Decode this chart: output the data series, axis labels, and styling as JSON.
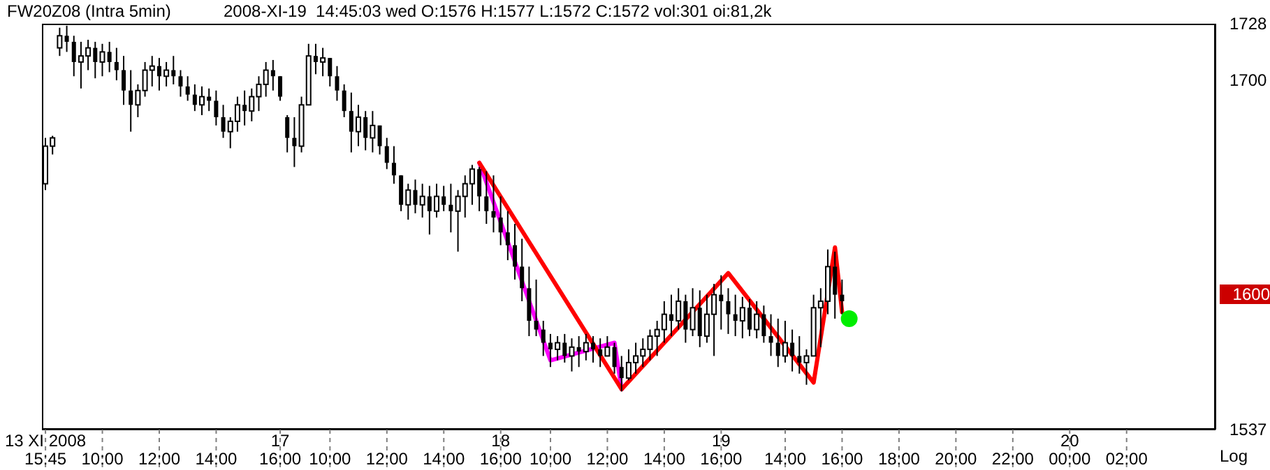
{
  "chart_data": {
    "type": "candlestick",
    "title": "FW20Z08 (Intra 5min)",
    "subtitle": "2008-XI-19  14:45:03 wed O:1576 H:1577 L:1572 C:1572 vol:301 oi:81,2k",
    "color": "#000000",
    "log": true,
    "ylim": [
      1537,
      1728
    ],
    "yticks": [
      1537,
      1700,
      1728
    ],
    "annotations": [
      "Log",
      "1600"
    ],
    "categories": [
      "13 XI 2008\n15:45",
      null,
      null,
      null,
      null,
      null,
      null,
      null,
      "10:00",
      null,
      null,
      null,
      null,
      null,
      null,
      null,
      "12:00",
      null,
      null,
      null,
      null,
      null,
      null,
      null,
      "14:00",
      null,
      null,
      null,
      null,
      null,
      null,
      null,
      null,
      "17\n16:00",
      null,
      null,
      null,
      null,
      null,
      null,
      "10:00",
      null,
      null,
      null,
      null,
      null,
      null,
      null,
      "12:00",
      null,
      null,
      null,
      null,
      null,
      null,
      null,
      "14:00",
      null,
      null,
      null,
      null,
      null,
      null,
      null,
      "18\n16:00",
      null,
      null,
      null,
      null,
      null,
      null,
      "10:00",
      null,
      null,
      null,
      null,
      null,
      null,
      null,
      "12:00",
      null,
      null,
      null,
      null,
      null,
      null,
      null,
      "14:00",
      null,
      null,
      null,
      null,
      null,
      null,
      null,
      "19\n16:00",
      null,
      null,
      null,
      null,
      null,
      null,
      null,
      null,
      "14:00",
      null,
      null,
      null,
      null,
      null,
      null,
      null,
      "16:00",
      null,
      null,
      null,
      null,
      null,
      null,
      null,
      "18:00",
      null,
      null,
      null,
      null,
      null,
      null,
      null,
      "20:00",
      null,
      null,
      null,
      null,
      null,
      null,
      null,
      "22:00",
      null,
      null,
      null,
      null,
      null,
      null,
      null,
      "20\n00:00",
      null,
      null,
      null,
      null,
      null,
      null,
      null,
      "02:00",
      null,
      null,
      null,
      null,
      null,
      null,
      null,
      null,
      null,
      null,
      null,
      null
    ],
    "ohlc": [
      [
        1650,
        1672,
        1647,
        1668
      ],
      [
        1668,
        1673,
        1664,
        1672
      ],
      [
        1716,
        1726,
        1712,
        1722
      ],
      [
        1722,
        1727,
        1714,
        1719
      ],
      [
        1719,
        1722,
        1702,
        1709
      ],
      [
        1709,
        1719,
        1696,
        1712
      ],
      [
        1712,
        1720,
        1705,
        1716
      ],
      [
        1716,
        1719,
        1701,
        1709
      ],
      [
        1709,
        1718,
        1702,
        1714
      ],
      [
        1714,
        1719,
        1704,
        1709
      ],
      [
        1709,
        1716,
        1700,
        1705
      ],
      [
        1705,
        1712,
        1688,
        1695
      ],
      [
        1695,
        1705,
        1675,
        1688
      ],
      [
        1688,
        1698,
        1682,
        1695
      ],
      [
        1695,
        1709,
        1692,
        1705
      ],
      [
        1705,
        1712,
        1697,
        1707
      ],
      [
        1707,
        1711,
        1695,
        1702
      ],
      [
        1702,
        1709,
        1697,
        1705
      ],
      [
        1705,
        1712,
        1698,
        1702
      ],
      [
        1702,
        1705,
        1692,
        1697
      ],
      [
        1697,
        1702,
        1690,
        1693
      ],
      [
        1693,
        1698,
        1685,
        1688
      ],
      [
        1688,
        1697,
        1683,
        1692
      ],
      [
        1692,
        1696,
        1685,
        1690
      ],
      [
        1690,
        1695,
        1678,
        1682
      ],
      [
        1682,
        1688,
        1672,
        1675
      ],
      [
        1675,
        1682,
        1667,
        1680
      ],
      [
        1680,
        1692,
        1675,
        1688
      ],
      [
        1688,
        1695,
        1678,
        1685
      ],
      [
        1685,
        1696,
        1680,
        1692
      ],
      [
        1692,
        1702,
        1685,
        1698
      ],
      [
        1698,
        1709,
        1692,
        1705
      ],
      [
        1705,
        1710,
        1695,
        1702
      ],
      [
        1702,
        1702,
        1690,
        1692
      ],
      [
        1682,
        1683,
        1665,
        1672
      ],
      [
        1672,
        1682,
        1658,
        1668
      ],
      [
        1668,
        1692,
        1665,
        1688
      ],
      [
        1688,
        1718,
        1688,
        1712
      ],
      [
        1712,
        1718,
        1703,
        1709
      ],
      [
        1709,
        1716,
        1702,
        1711
      ],
      [
        1711,
        1711,
        1697,
        1702
      ],
      [
        1702,
        1707,
        1690,
        1695
      ],
      [
        1695,
        1698,
        1682,
        1685
      ],
      [
        1685,
        1694,
        1665,
        1675
      ],
      [
        1675,
        1688,
        1668,
        1682
      ],
      [
        1682,
        1685,
        1666,
        1672
      ],
      [
        1672,
        1685,
        1665,
        1678
      ],
      [
        1678,
        1678,
        1664,
        1668
      ],
      [
        1668,
        1672,
        1657,
        1660
      ],
      [
        1660,
        1668,
        1650,
        1654
      ],
      [
        1654,
        1654,
        1637,
        1640
      ],
      [
        1640,
        1650,
        1633,
        1647
      ],
      [
        1647,
        1652,
        1636,
        1640
      ],
      [
        1640,
        1650,
        1634,
        1644
      ],
      [
        1644,
        1649,
        1626,
        1637
      ],
      [
        1637,
        1650,
        1634,
        1644
      ],
      [
        1644,
        1649,
        1637,
        1640
      ],
      [
        1640,
        1650,
        1627,
        1637
      ],
      [
        1637,
        1647,
        1618,
        1644
      ],
      [
        1644,
        1654,
        1634,
        1650
      ],
      [
        1650,
        1659,
        1640,
        1657
      ],
      [
        1657,
        1658,
        1637,
        1644
      ],
      [
        1644,
        1656,
        1631,
        1637
      ],
      [
        1637,
        1654,
        1627,
        1634
      ],
      [
        1634,
        1644,
        1621,
        1627
      ],
      [
        1627,
        1637,
        1614,
        1621
      ],
      [
        1621,
        1631,
        1605,
        1611
      ],
      [
        1611,
        1624,
        1595,
        1601
      ],
      [
        1601,
        1611,
        1579,
        1586
      ],
      [
        1586,
        1605,
        1579,
        1582
      ],
      [
        1582,
        1586,
        1570,
        1576
      ],
      [
        1576,
        1580,
        1565,
        1573
      ],
      [
        1573,
        1579,
        1568,
        1576
      ],
      [
        1576,
        1580,
        1567,
        1570
      ],
      [
        1570,
        1578,
        1563,
        1574
      ],
      [
        1574,
        1579,
        1565,
        1572
      ],
      [
        1572,
        1580,
        1568,
        1576
      ],
      [
        1576,
        1579,
        1567,
        1573
      ],
      [
        1573,
        1578,
        1565,
        1570
      ],
      [
        1570,
        1579,
        1570,
        1574
      ],
      [
        1574,
        1576,
        1562,
        1565
      ],
      [
        1565,
        1570,
        1554,
        1560
      ],
      [
        1560,
        1573,
        1559,
        1567
      ],
      [
        1567,
        1576,
        1562,
        1570
      ],
      [
        1570,
        1578,
        1565,
        1573
      ],
      [
        1573,
        1582,
        1568,
        1579
      ],
      [
        1579,
        1586,
        1570,
        1582
      ],
      [
        1582,
        1595,
        1576,
        1589
      ],
      [
        1589,
        1598,
        1579,
        1586
      ],
      [
        1586,
        1601,
        1582,
        1595
      ],
      [
        1595,
        1598,
        1576,
        1582
      ],
      [
        1582,
        1601,
        1579,
        1592
      ],
      [
        1592,
        1600,
        1574,
        1579
      ],
      [
        1579,
        1598,
        1576,
        1589
      ],
      [
        1589,
        1603,
        1570,
        1598
      ],
      [
        1598,
        1607,
        1582,
        1595
      ],
      [
        1595,
        1601,
        1580,
        1589
      ],
      [
        1589,
        1598,
        1579,
        1586
      ],
      [
        1586,
        1597,
        1578,
        1592
      ],
      [
        1592,
        1596,
        1579,
        1582
      ],
      [
        1582,
        1595,
        1578,
        1589
      ],
      [
        1589,
        1593,
        1576,
        1579
      ],
      [
        1579,
        1589,
        1570,
        1576
      ],
      [
        1576,
        1587,
        1565,
        1570
      ],
      [
        1570,
        1586,
        1567,
        1576
      ],
      [
        1576,
        1582,
        1563,
        1570
      ],
      [
        1570,
        1579,
        1562,
        1567
      ],
      [
        1567,
        1573,
        1557,
        1570
      ],
      [
        1570,
        1598,
        1570,
        1592
      ],
      [
        1592,
        1601,
        1574,
        1595
      ],
      [
        1595,
        1619,
        1589,
        1611
      ],
      [
        1611,
        1618,
        1587,
        1598
      ],
      [
        1598,
        1605,
        1589,
        1595
      ],
      null,
      null,
      null,
      null,
      null,
      null,
      null,
      null,
      null,
      null,
      null,
      null,
      null,
      null,
      null,
      null,
      null,
      null,
      null,
      null,
      null,
      null,
      null,
      null,
      null,
      null,
      null,
      null,
      null,
      null,
      null,
      null,
      null,
      null,
      null,
      null,
      null,
      null,
      null,
      null,
      null,
      null,
      null,
      null,
      null,
      null,
      null,
      null,
      null,
      null,
      null,
      null
    ],
    "series": [
      {
        "type": "line",
        "color": "#ff00ff",
        "values": [
          null,
          null,
          null,
          null,
          null,
          null,
          null,
          null,
          null,
          null,
          null,
          null,
          null,
          null,
          null,
          null,
          null,
          null,
          null,
          null,
          null,
          null,
          null,
          null,
          null,
          null,
          null,
          null,
          null,
          null,
          null,
          null,
          null,
          null,
          null,
          null,
          null,
          null,
          null,
          null,
          null,
          null,
          null,
          null,
          null,
          null,
          null,
          null,
          null,
          null,
          null,
          null,
          null,
          null,
          null,
          null,
          null,
          null,
          null,
          null,
          null,
          1660,
          null,
          null,
          null,
          null,
          null,
          null,
          null,
          null,
          null,
          1568,
          null,
          null,
          null,
          null,
          null,
          null,
          null,
          null,
          1576,
          1555,
          null,
          null,
          null,
          null,
          null,
          null,
          null,
          null,
          null,
          null,
          null,
          null,
          null,
          null,
          null,
          null,
          null,
          null,
          null,
          null,
          null,
          null,
          null,
          null,
          null,
          null,
          null,
          null,
          null,
          null,
          null,
          null,
          null,
          null,
          null,
          null,
          null,
          null,
          null,
          null,
          null,
          null,
          null,
          null,
          null,
          null,
          null,
          null,
          null,
          null,
          null,
          null,
          null,
          null,
          null,
          null,
          null,
          null,
          null,
          null,
          null,
          null,
          null,
          null,
          null,
          null,
          null,
          null,
          null,
          null,
          null,
          null,
          null,
          null,
          null,
          null,
          null,
          null,
          null,
          null,
          null,
          null,
          null
        ]
      },
      {
        "type": "line",
        "color": "#ff0000",
        "values": [
          null,
          null,
          null,
          null,
          null,
          null,
          null,
          null,
          null,
          null,
          null,
          null,
          null,
          null,
          null,
          null,
          null,
          null,
          null,
          null,
          null,
          null,
          null,
          null,
          null,
          null,
          null,
          null,
          null,
          null,
          null,
          null,
          null,
          null,
          null,
          null,
          null,
          null,
          null,
          null,
          null,
          null,
          null,
          null,
          null,
          null,
          null,
          null,
          null,
          null,
          null,
          null,
          null,
          null,
          null,
          null,
          null,
          null,
          null,
          null,
          null,
          1660,
          null,
          null,
          null,
          null,
          null,
          null,
          null,
          null,
          null,
          null,
          null,
          null,
          null,
          null,
          null,
          null,
          null,
          null,
          null,
          1555,
          null,
          null,
          null,
          null,
          null,
          null,
          null,
          null,
          null,
          null,
          null,
          null,
          null,
          null,
          1608,
          null,
          null,
          null,
          null,
          null,
          null,
          null,
          null,
          null,
          null,
          null,
          1558,
          null,
          null,
          1620,
          1590,
          null,
          null,
          null,
          null,
          null,
          null,
          null,
          null,
          null,
          null,
          null,
          null,
          null,
          null,
          null,
          null,
          null,
          null,
          null,
          null,
          null,
          null,
          null,
          null,
          null,
          null,
          null,
          null,
          null,
          null,
          null,
          null,
          null,
          null,
          null,
          null,
          null,
          null,
          null,
          null,
          null,
          null,
          null,
          null,
          null,
          null,
          null,
          null,
          null,
          null,
          null,
          null
        ]
      },
      {
        "type": "scatter",
        "color": "#00ee00",
        "values": [
          null,
          null,
          null,
          null,
          null,
          null,
          null,
          null,
          null,
          null,
          null,
          null,
          null,
          null,
          null,
          null,
          null,
          null,
          null,
          null,
          null,
          null,
          null,
          null,
          null,
          null,
          null,
          null,
          null,
          null,
          null,
          null,
          null,
          null,
          null,
          null,
          null,
          null,
          null,
          null,
          null,
          null,
          null,
          null,
          null,
          null,
          null,
          null,
          null,
          null,
          null,
          null,
          null,
          null,
          null,
          null,
          null,
          null,
          null,
          null,
          null,
          null,
          null,
          null,
          null,
          null,
          null,
          null,
          null,
          null,
          null,
          null,
          null,
          null,
          null,
          null,
          null,
          null,
          null,
          null,
          null,
          null,
          null,
          null,
          null,
          null,
          null,
          null,
          null,
          null,
          null,
          null,
          null,
          null,
          null,
          null,
          null,
          null,
          null,
          null,
          null,
          null,
          null,
          null,
          null,
          null,
          null,
          null,
          null,
          null,
          null,
          null,
          null,
          1587,
          null,
          null,
          null,
          null,
          null,
          null,
          null,
          null,
          null,
          null,
          null,
          null,
          null,
          null,
          null,
          null,
          null,
          null,
          null,
          null,
          null,
          null,
          null,
          null,
          null,
          null,
          null,
          null,
          null,
          null,
          null,
          null,
          null,
          null,
          null,
          null,
          null,
          null,
          null,
          null,
          null,
          null,
          null,
          null,
          null,
          null,
          null,
          null,
          null,
          null,
          null
        ]
      }
    ]
  }
}
